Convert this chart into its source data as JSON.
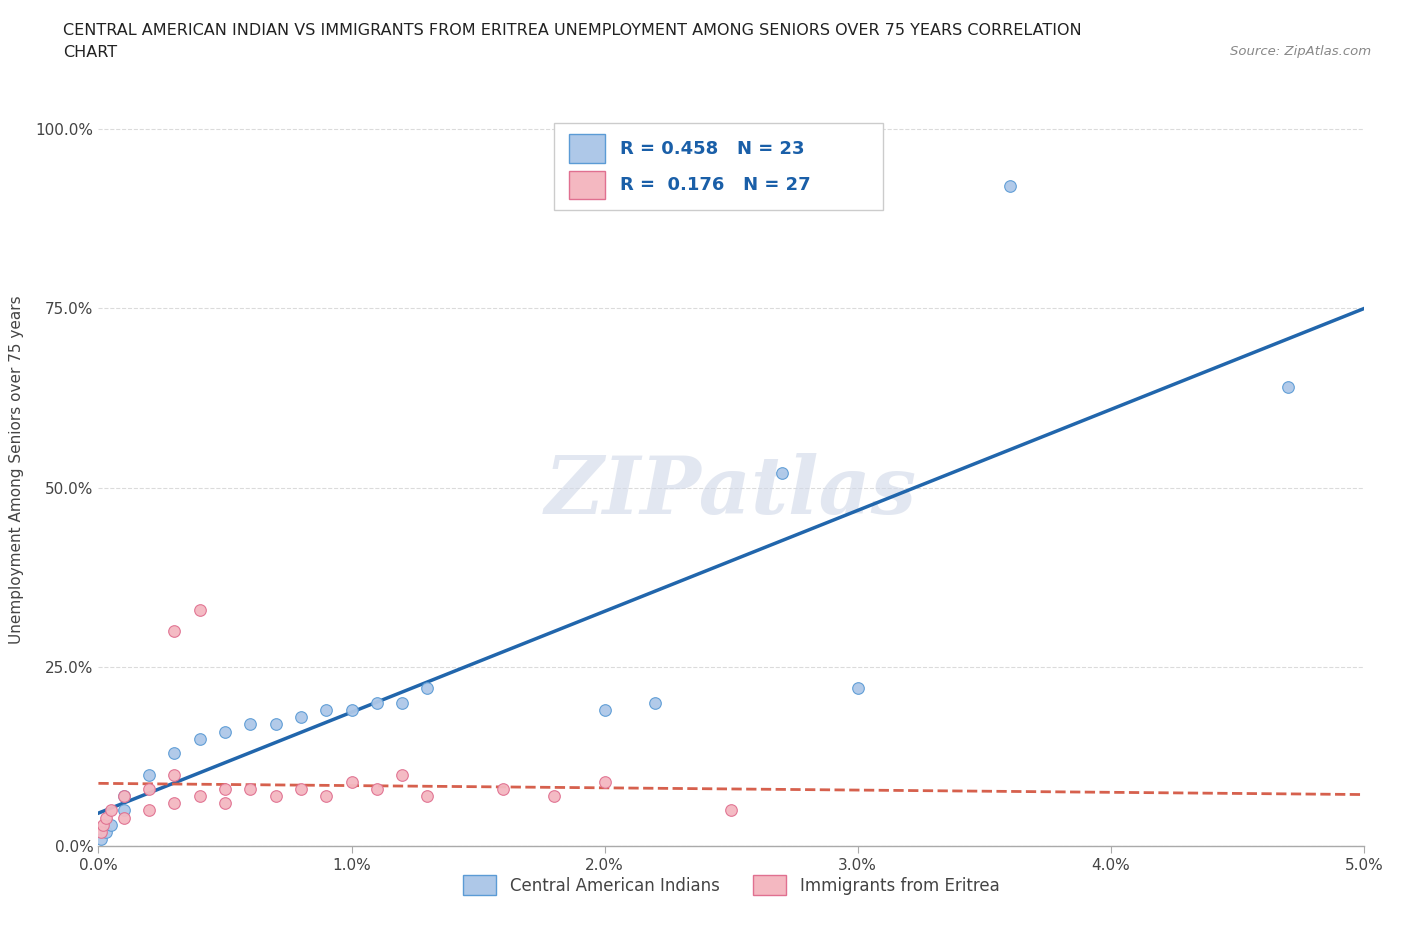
{
  "title_line1": "CENTRAL AMERICAN INDIAN VS IMMIGRANTS FROM ERITREA UNEMPLOYMENT AMONG SENIORS OVER 75 YEARS CORRELATION",
  "title_line2": "CHART",
  "source_text": "Source: ZipAtlas.com",
  "ylabel": "Unemployment Among Seniors over 75 years",
  "xmin": 0.0,
  "xmax": 0.05,
  "ymin": 0.0,
  "ymax": 1.05,
  "yticks": [
    0.0,
    0.25,
    0.5,
    0.75,
    1.0
  ],
  "ytick_labels": [
    "0.0%",
    "25.0%",
    "50.0%",
    "75.0%",
    "100.0%"
  ],
  "xticks": [
    0.0,
    0.01,
    0.02,
    0.03,
    0.04,
    0.05
  ],
  "xtick_labels": [
    "0.0%",
    "1.0%",
    "2.0%",
    "3.0%",
    "4.0%",
    "5.0%"
  ],
  "blue_scatter_x": [
    0.0001,
    0.0003,
    0.0005,
    0.001,
    0.001,
    0.002,
    0.003,
    0.004,
    0.005,
    0.006,
    0.007,
    0.008,
    0.009,
    0.01,
    0.011,
    0.012,
    0.013,
    0.02,
    0.022,
    0.027,
    0.03,
    0.036,
    0.047
  ],
  "blue_scatter_y": [
    0.01,
    0.02,
    0.03,
    0.05,
    0.07,
    0.1,
    0.13,
    0.15,
    0.16,
    0.17,
    0.17,
    0.18,
    0.19,
    0.19,
    0.2,
    0.2,
    0.22,
    0.19,
    0.2,
    0.52,
    0.22,
    0.92,
    0.64
  ],
  "pink_scatter_x": [
    0.0001,
    0.0002,
    0.0003,
    0.0005,
    0.001,
    0.001,
    0.002,
    0.002,
    0.003,
    0.003,
    0.003,
    0.004,
    0.004,
    0.005,
    0.005,
    0.006,
    0.007,
    0.008,
    0.009,
    0.01,
    0.011,
    0.012,
    0.013,
    0.016,
    0.018,
    0.02,
    0.025
  ],
  "pink_scatter_y": [
    0.02,
    0.03,
    0.04,
    0.05,
    0.04,
    0.07,
    0.05,
    0.08,
    0.06,
    0.1,
    0.3,
    0.07,
    0.33,
    0.06,
    0.08,
    0.08,
    0.07,
    0.08,
    0.07,
    0.09,
    0.08,
    0.1,
    0.07,
    0.08,
    0.07,
    0.09,
    0.05
  ],
  "blue_color": "#aec8e8",
  "blue_edge_color": "#5b9bd5",
  "pink_color": "#f4b8c1",
  "pink_edge_color": "#e07090",
  "blue_line_color": "#2166ac",
  "pink_line_color": "#d6604d",
  "watermark_text": "ZIPatlas",
  "R_blue": 0.458,
  "N_blue": 23,
  "R_pink": 0.176,
  "N_pink": 27,
  "legend_label_blue": "Central American Indians",
  "legend_label_pink": "Immigrants from Eritrea",
  "background_color": "#ffffff",
  "grid_color": "#cccccc"
}
